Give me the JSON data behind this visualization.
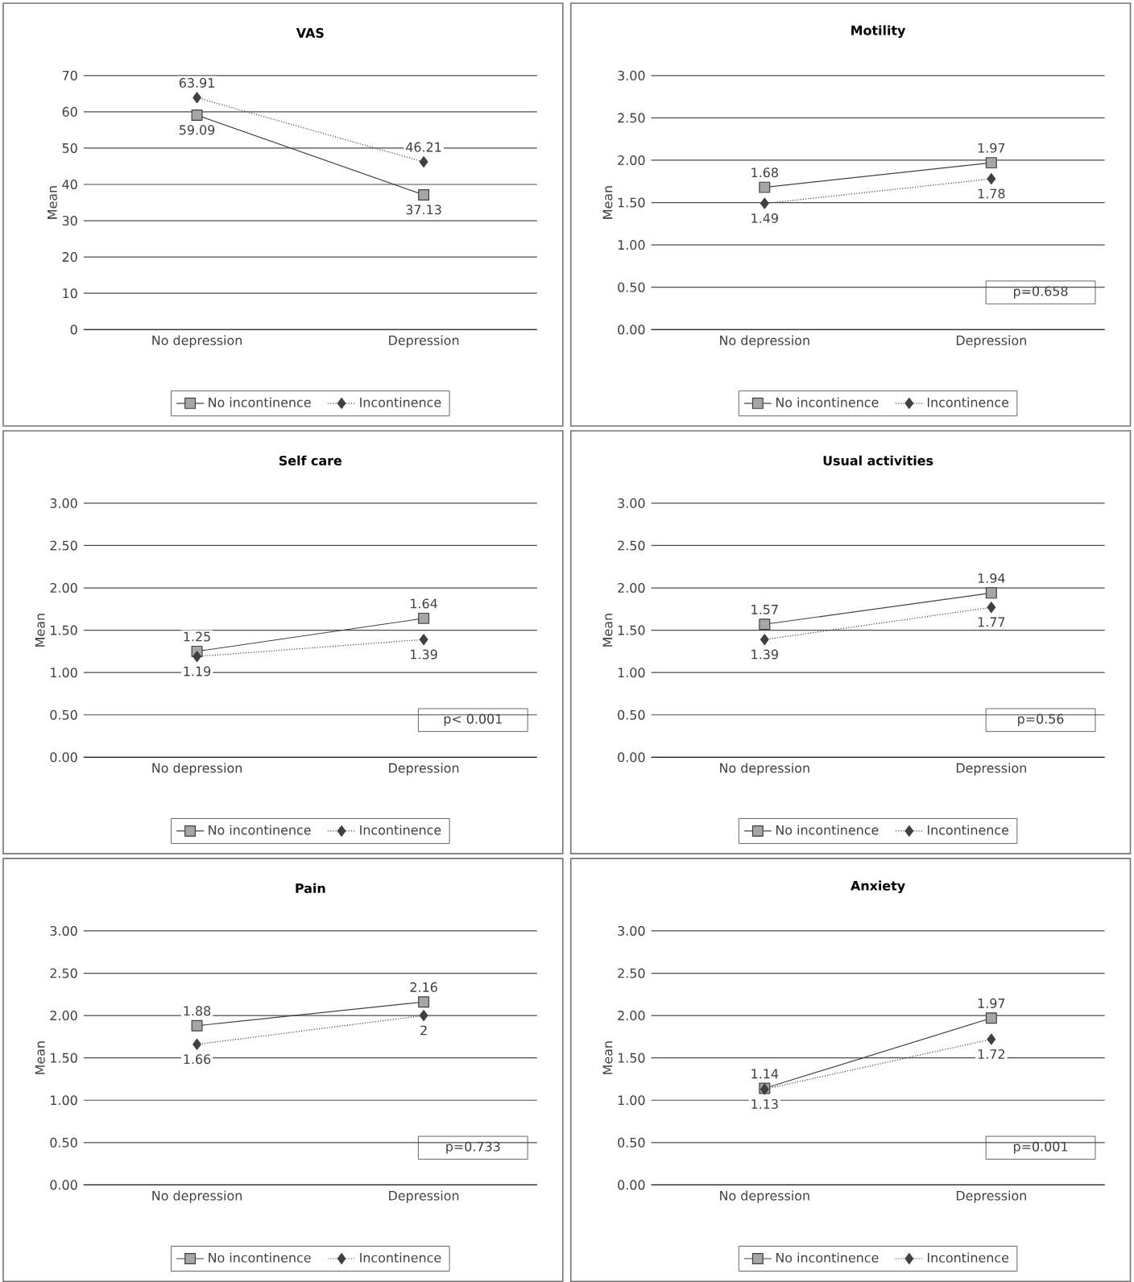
{
  "chart_data": [
    {
      "type": "line",
      "title": "VAS",
      "ylabel": "Mean",
      "categories": [
        "No depression",
        "Depression"
      ],
      "ylim": [
        0,
        70
      ],
      "yticks": [
        0,
        10,
        20,
        30,
        40,
        50,
        60,
        70
      ],
      "grid": "y",
      "legend": "bottom",
      "series": [
        {
          "name": "No incontinence",
          "color": "#a6a6a6",
          "marker": "square",
          "line_style": "solid",
          "values": [
            59.09,
            37.13
          ],
          "value_labels": [
            "59.09",
            "37.13"
          ]
        },
        {
          "name": "Incontinence",
          "color": "#404040",
          "marker": "diamond",
          "line_style": "dotted",
          "values": [
            63.91,
            46.21
          ],
          "value_labels": [
            "63.91",
            "46.21"
          ]
        }
      ]
    },
    {
      "type": "line",
      "title": "Motility",
      "ylabel": "Mean",
      "categories": [
        "No depression",
        "Depression"
      ],
      "ylim": [
        0,
        3
      ],
      "yticks": [
        {
          "value": 0,
          "label": "0.00"
        },
        {
          "value": 0.5,
          "label": "0.50"
        },
        {
          "value": 1,
          "label": "1.00"
        },
        {
          "value": 1.5,
          "label": "1.50"
        },
        {
          "value": 2,
          "label": "2.00"
        },
        {
          "value": 2.5,
          "label": "2.50"
        },
        {
          "value": 3,
          "label": "3.00"
        }
      ],
      "grid": "y",
      "legend": "bottom",
      "annotations": [
        "p=0.658"
      ],
      "series": [
        {
          "name": "No incontinence",
          "color": "#a6a6a6",
          "marker": "square",
          "line_style": "solid",
          "values": [
            1.68,
            1.97
          ],
          "value_labels": [
            "1.68",
            "1.97"
          ]
        },
        {
          "name": "Incontinence",
          "color": "#404040",
          "marker": "diamond",
          "line_style": "dotted",
          "values": [
            1.49,
            1.78
          ],
          "value_labels": [
            "1.49",
            "1.78"
          ]
        }
      ]
    },
    {
      "type": "line",
      "title": "Self care",
      "ylabel": "Mean",
      "categories": [
        "No depression",
        "Depression"
      ],
      "ylim": [
        0,
        3
      ],
      "yticks": [
        {
          "value": 0,
          "label": "0.00"
        },
        {
          "value": 0.5,
          "label": "0.50"
        },
        {
          "value": 1,
          "label": "1.00"
        },
        {
          "value": 1.5,
          "label": "1.50"
        },
        {
          "value": 2,
          "label": "2.00"
        },
        {
          "value": 2.5,
          "label": "2.50"
        },
        {
          "value": 3,
          "label": "3.00"
        }
      ],
      "grid": "y",
      "legend": "bottom",
      "annotations": [
        "p< 0.001"
      ],
      "series": [
        {
          "name": "No incontinence",
          "color": "#a6a6a6",
          "marker": "square",
          "line_style": "solid",
          "values": [
            1.25,
            1.64
          ],
          "value_labels": [
            "1.25",
            "1.64"
          ]
        },
        {
          "name": "Incontinence",
          "color": "#404040",
          "marker": "diamond",
          "line_style": "dotted",
          "values": [
            1.19,
            1.39
          ],
          "value_labels": [
            "1.19",
            "1.39"
          ]
        }
      ]
    },
    {
      "type": "line",
      "title": "Usual activities",
      "ylabel": "Mean",
      "categories": [
        "No depression",
        "Depression"
      ],
      "ylim": [
        0,
        3
      ],
      "yticks": [
        {
          "value": 0,
          "label": "0.00"
        },
        {
          "value": 0.5,
          "label": "0.50"
        },
        {
          "value": 1,
          "label": "1.00"
        },
        {
          "value": 1.5,
          "label": "1.50"
        },
        {
          "value": 2,
          "label": "2.00"
        },
        {
          "value": 2.5,
          "label": "2.50"
        },
        {
          "value": 3,
          "label": "3.00"
        }
      ],
      "grid": "y",
      "legend": "bottom",
      "annotations": [
        "p=0.56"
      ],
      "series": [
        {
          "name": "No incontinence",
          "color": "#a6a6a6",
          "marker": "square",
          "line_style": "solid",
          "values": [
            1.57,
            1.94
          ],
          "value_labels": [
            "1.57",
            "1.94"
          ]
        },
        {
          "name": "Incontinence",
          "color": "#404040",
          "marker": "diamond",
          "line_style": "dotted",
          "values": [
            1.39,
            1.77
          ],
          "value_labels": [
            "1.39",
            "1.77"
          ]
        }
      ]
    },
    {
      "type": "line",
      "title": "Pain",
      "ylabel": "Mean",
      "categories": [
        "No depression",
        "Depression"
      ],
      "ylim": [
        0,
        3
      ],
      "yticks": [
        {
          "value": 0,
          "label": "0.00"
        },
        {
          "value": 0.5,
          "label": "0.50"
        },
        {
          "value": 1,
          "label": "1.00"
        },
        {
          "value": 1.5,
          "label": "1.50"
        },
        {
          "value": 2,
          "label": "2.00"
        },
        {
          "value": 2.5,
          "label": "2.50"
        },
        {
          "value": 3,
          "label": "3.00"
        }
      ],
      "grid": "y",
      "legend": "bottom",
      "annotations": [
        "p=0.733"
      ],
      "series": [
        {
          "name": "No incontinence",
          "color": "#a6a6a6",
          "marker": "square",
          "line_style": "solid",
          "values": [
            1.88,
            2.16
          ],
          "value_labels": [
            "1.88",
            "2.16"
          ]
        },
        {
          "name": "Incontinence",
          "color": "#404040",
          "marker": "diamond",
          "line_style": "dotted",
          "values": [
            1.66,
            2
          ],
          "value_labels": [
            "1.66",
            "2"
          ]
        }
      ]
    },
    {
      "type": "line",
      "title": "Anxiety",
      "ylabel": "Mean",
      "categories": [
        "No depression",
        "Depression"
      ],
      "ylim": [
        0,
        3
      ],
      "yticks": [
        {
          "value": 0,
          "label": "0.00"
        },
        {
          "value": 0.5,
          "label": "0.50"
        },
        {
          "value": 1,
          "label": "1.00"
        },
        {
          "value": 1.5,
          "label": "1.50"
        },
        {
          "value": 2,
          "label": "2.00"
        },
        {
          "value": 2.5,
          "label": "2.50"
        },
        {
          "value": 3,
          "label": "3.00"
        }
      ],
      "grid": "y",
      "legend": "bottom",
      "annotations": [
        "p=0.001"
      ],
      "series": [
        {
          "name": "No incontinence",
          "color": "#a6a6a6",
          "marker": "square",
          "line_style": "solid",
          "values": [
            1.14,
            1.97
          ],
          "value_labels": [
            "1.14",
            "1.97"
          ]
        },
        {
          "name": "Incontinence",
          "color": "#404040",
          "marker": "diamond",
          "line_style": "dotted",
          "values": [
            1.13,
            1.72
          ],
          "value_labels": [
            "1.13",
            "1.72"
          ]
        }
      ]
    }
  ]
}
